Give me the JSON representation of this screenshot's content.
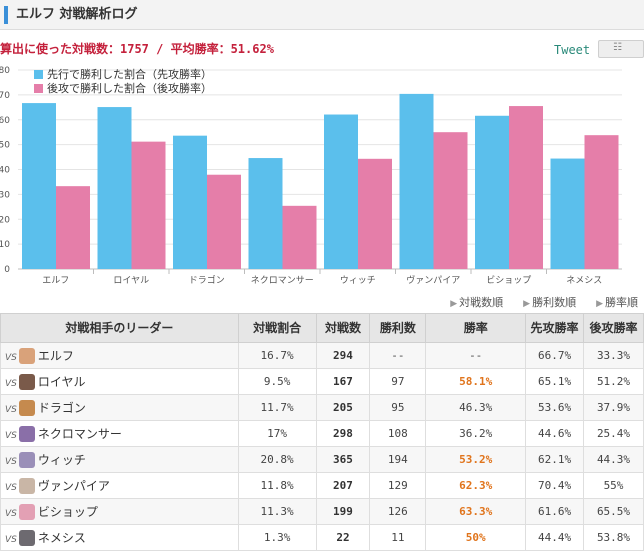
{
  "header": {
    "title": "エルフ 対戦解析ログ"
  },
  "summary": {
    "text": "算出に使った対戦数：1757 / 平均勝率：51.62%"
  },
  "tweet_label": "Tweet",
  "share_icon": "page-icon",
  "colors": {
    "first": "#5bbfec",
    "second": "#e57ea9",
    "accent": "#3a8fd8",
    "highlight": "#e0741c"
  },
  "chart_data": {
    "type": "bar",
    "categories": [
      "エルフ",
      "ロイヤル",
      "ドラゴン",
      "ネクロマンサー",
      "ウィッチ",
      "ヴァンパイア",
      "ビショップ",
      "ネメシス"
    ],
    "series": [
      {
        "name": "先行で勝利した割合（先攻勝率）",
        "values": [
          66.7,
          65.1,
          53.6,
          44.6,
          62.1,
          70.4,
          61.6,
          44.4
        ]
      },
      {
        "name": "後攻で勝利した割合（後攻勝率）",
        "values": [
          33.3,
          51.2,
          37.9,
          25.4,
          44.3,
          55,
          65.5,
          53.8
        ]
      }
    ],
    "yticks": [
      "0",
      "10",
      "20",
      "30",
      "40",
      "50",
      "60",
      "70",
      "80"
    ],
    "ylim": [
      0,
      80
    ],
    "grid": true,
    "legend": "top-left"
  },
  "sort_links": [
    "対戦数順",
    "勝利数順",
    "勝率順"
  ],
  "table": {
    "headers": [
      "対戦相手のリーダー",
      "対戦割合",
      "対戦数",
      "勝利数",
      "勝率",
      "先攻勝率",
      "後攻勝率"
    ],
    "vs_label": "VS",
    "rows": [
      {
        "leader": "エルフ",
        "ratio": "16.7%",
        "games": "294",
        "wins": "--",
        "winrate": "--",
        "first": "66.7%",
        "second": "33.3%",
        "hot": false,
        "avatar": "#d9a27a"
      },
      {
        "leader": "ロイヤル",
        "ratio": "9.5%",
        "games": "167",
        "wins": "97",
        "winrate": "58.1%",
        "first": "65.1%",
        "second": "51.2%",
        "hot": true,
        "avatar": "#7a5a4a"
      },
      {
        "leader": "ドラゴン",
        "ratio": "11.7%",
        "games": "205",
        "wins": "95",
        "winrate": "46.3%",
        "first": "53.6%",
        "second": "37.9%",
        "hot": false,
        "avatar": "#c58a4e"
      },
      {
        "leader": "ネクロマンサー",
        "ratio": "17%",
        "games": "298",
        "wins": "108",
        "winrate": "36.2%",
        "first": "44.6%",
        "second": "25.4%",
        "hot": false,
        "avatar": "#8a6fa8"
      },
      {
        "leader": "ウィッチ",
        "ratio": "20.8%",
        "games": "365",
        "wins": "194",
        "winrate": "53.2%",
        "first": "62.1%",
        "second": "44.3%",
        "hot": true,
        "avatar": "#9a8fb8"
      },
      {
        "leader": "ヴァンパイア",
        "ratio": "11.8%",
        "games": "207",
        "wins": "129",
        "winrate": "62.3%",
        "first": "70.4%",
        "second": "55%",
        "hot": true,
        "avatar": "#c9b6a6"
      },
      {
        "leader": "ビショップ",
        "ratio": "11.3%",
        "games": "199",
        "wins": "126",
        "winrate": "63.3%",
        "first": "61.6%",
        "second": "65.5%",
        "hot": true,
        "avatar": "#e3a0b4"
      },
      {
        "leader": "ネメシス",
        "ratio": "1.3%",
        "games": "22",
        "wins": "11",
        "winrate": "50%",
        "first": "44.4%",
        "second": "53.8%",
        "hot": true,
        "avatar": "#6d6a70"
      }
    ]
  }
}
